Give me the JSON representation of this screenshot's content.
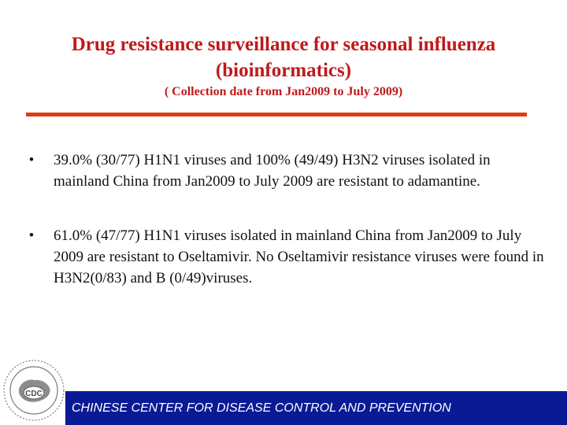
{
  "slide": {
    "title_line1": "Drug resistance surveillance for seasonal influenza",
    "title_line2": "(bioinformatics)",
    "subtitle": "( Collection date from Jan2009 to July 2009)"
  },
  "bullets": [
    {
      "marker": "•",
      "text": "39.0% (30/77) H1N1 viruses and 100% (49/49) H3N2 viruses isolated in mainland China from Jan2009 to July 2009 are resistant to adamantine."
    },
    {
      "marker": "•",
      "text": "61.0% (47/77) H1N1 viruses isolated in mainland China from Jan2009 to July 2009 are resistant to Oseltamivir. No Oseltamivir resistance viruses were found in H3N2(0/83) and B (0/49)viruses."
    }
  ],
  "footer": {
    "logo_text": "CDC",
    "text": "CHINESE CENTER FOR DISEASE CONTROL AND PREVENTION"
  },
  "colors": {
    "title": "#c0191b",
    "rule": "#e03a14",
    "footer_bar": "#0a1a95"
  }
}
